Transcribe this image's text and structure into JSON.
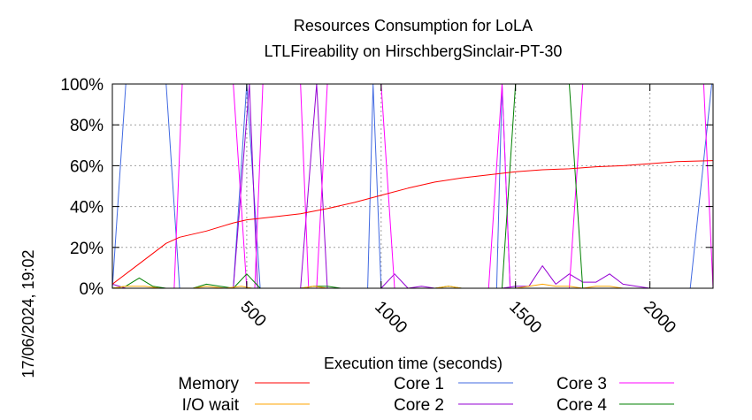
{
  "chart_data": {
    "type": "line",
    "title": "Resources Consumption for LoLA",
    "subtitle": "LTLFireability on HirschbergSinclair-PT-30",
    "xlabel": "Execution time (seconds)",
    "ylabel": "",
    "side_label": "17/06/2024, 19:02",
    "xlim": [
      0,
      2235
    ],
    "ylim": [
      0,
      100
    ],
    "x_ticks": [
      500,
      1000,
      1500,
      2000
    ],
    "y_ticks": [
      0,
      20,
      40,
      60,
      80,
      100
    ],
    "y_tick_labels": [
      "0%",
      "20%",
      "40%",
      "60%",
      "80%",
      "100%"
    ],
    "grid": true,
    "legend_position": "bottom",
    "series": [
      {
        "name": "Memory",
        "color": "#ff0000",
        "points": [
          [
            0,
            2
          ],
          [
            100,
            12
          ],
          [
            200,
            22
          ],
          [
            250,
            25
          ],
          [
            350,
            28
          ],
          [
            450,
            32
          ],
          [
            500,
            33.5
          ],
          [
            600,
            35
          ],
          [
            700,
            36.5
          ],
          [
            800,
            39
          ],
          [
            900,
            42
          ],
          [
            1000,
            45.5
          ],
          [
            1100,
            49
          ],
          [
            1200,
            52
          ],
          [
            1300,
            54
          ],
          [
            1400,
            55.5
          ],
          [
            1500,
            57
          ],
          [
            1600,
            58
          ],
          [
            1700,
            58.5
          ],
          [
            1800,
            59.5
          ],
          [
            1900,
            60
          ],
          [
            2000,
            61
          ],
          [
            2100,
            62
          ],
          [
            2235,
            62.5
          ]
        ]
      },
      {
        "name": "I/O wait",
        "color": "#ffa500",
        "points": [
          [
            0,
            0
          ],
          [
            50,
            1
          ],
          [
            120,
            1
          ],
          [
            180,
            0
          ],
          [
            300,
            0
          ],
          [
            350,
            1
          ],
          [
            420,
            0
          ],
          [
            480,
            1
          ],
          [
            520,
            0
          ],
          [
            700,
            0
          ],
          [
            750,
            1
          ],
          [
            800,
            0
          ],
          [
            1200,
            0
          ],
          [
            1250,
            1
          ],
          [
            1300,
            0
          ],
          [
            1500,
            0
          ],
          [
            1550,
            1
          ],
          [
            1600,
            2
          ],
          [
            1650,
            1
          ],
          [
            1700,
            1
          ],
          [
            1750,
            0
          ],
          [
            1800,
            1
          ],
          [
            1850,
            1
          ],
          [
            1900,
            0
          ],
          [
            2235,
            0
          ]
        ]
      },
      {
        "name": "Core 1",
        "color": "#4169e1",
        "points": [
          [
            0,
            0
          ],
          [
            50,
            100
          ],
          [
            200,
            100
          ],
          [
            250,
            0
          ],
          [
            450,
            0
          ],
          [
            500,
            100
          ],
          [
            550,
            0
          ],
          [
            950,
            0
          ],
          [
            970,
            100
          ],
          [
            1000,
            0
          ],
          [
            1430,
            0
          ],
          [
            1450,
            100
          ],
          [
            1480,
            0
          ],
          [
            2150,
            0
          ],
          [
            2230,
            100
          ]
        ]
      },
      {
        "name": "Core 2",
        "color": "#9400d3",
        "points": [
          [
            0,
            2
          ],
          [
            50,
            0
          ],
          [
            450,
            0
          ],
          [
            510,
            100
          ],
          [
            540,
            0
          ],
          [
            700,
            0
          ],
          [
            760,
            100
          ],
          [
            800,
            0
          ],
          [
            1000,
            0
          ],
          [
            1050,
            7
          ],
          [
            1100,
            0
          ],
          [
            1150,
            1
          ],
          [
            1200,
            0
          ],
          [
            1450,
            0
          ],
          [
            1500,
            1
          ],
          [
            1550,
            1
          ],
          [
            1600,
            11
          ],
          [
            1650,
            2
          ],
          [
            1700,
            7
          ],
          [
            1750,
            3
          ],
          [
            1800,
            3
          ],
          [
            1850,
            7
          ],
          [
            1900,
            2
          ],
          [
            1950,
            1
          ],
          [
            2000,
            0
          ],
          [
            2235,
            0
          ]
        ]
      },
      {
        "name": "Core 3",
        "color": "#ff00ff",
        "points": [
          [
            0,
            0
          ],
          [
            230,
            0
          ],
          [
            260,
            100
          ],
          [
            450,
            100
          ],
          [
            500,
            0
          ],
          [
            530,
            0
          ],
          [
            560,
            100
          ],
          [
            700,
            100
          ],
          [
            730,
            0
          ],
          [
            760,
            0
          ],
          [
            800,
            100
          ],
          [
            1000,
            100
          ],
          [
            1050,
            0
          ],
          [
            1250,
            0
          ],
          [
            1300,
            0
          ],
          [
            1400,
            0
          ],
          [
            1450,
            100
          ],
          [
            1480,
            0
          ],
          [
            1700,
            0
          ],
          [
            1750,
            100
          ],
          [
            2200,
            100
          ],
          [
            2235,
            0
          ]
        ]
      },
      {
        "name": "Core 4",
        "color": "#008000",
        "points": [
          [
            0,
            0
          ],
          [
            50,
            1
          ],
          [
            100,
            5
          ],
          [
            150,
            1
          ],
          [
            200,
            0
          ],
          [
            300,
            0
          ],
          [
            350,
            2
          ],
          [
            400,
            1
          ],
          [
            450,
            0
          ],
          [
            500,
            7
          ],
          [
            550,
            0
          ],
          [
            700,
            0
          ],
          [
            750,
            1
          ],
          [
            800,
            1
          ],
          [
            850,
            0
          ],
          [
            1200,
            0
          ],
          [
            1250,
            1
          ],
          [
            1300,
            0
          ],
          [
            1450,
            0
          ],
          [
            1500,
            100
          ],
          [
            1700,
            100
          ],
          [
            1750,
            0
          ],
          [
            2235,
            0
          ]
        ]
      }
    ]
  }
}
